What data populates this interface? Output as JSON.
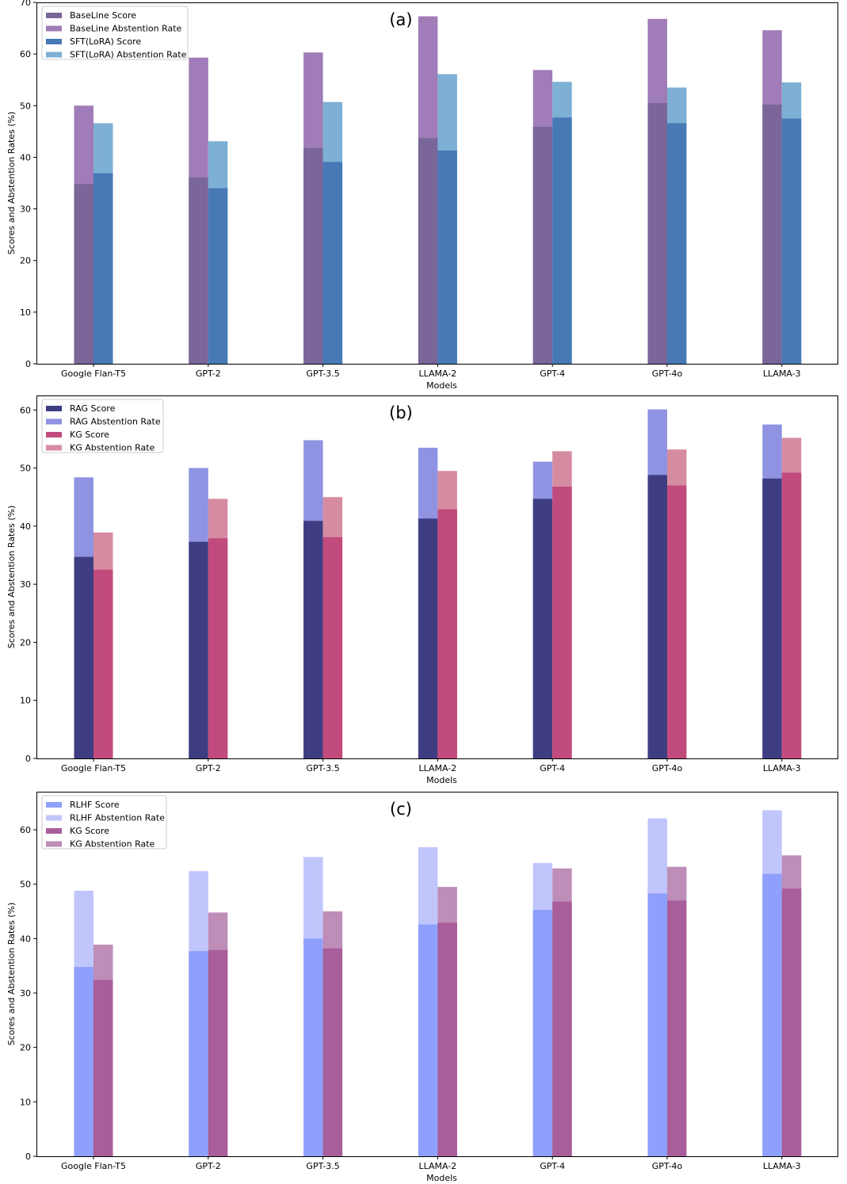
{
  "chart_data": [
    {
      "type": "bar",
      "stacked_overlay": true,
      "panel_label": "(a)",
      "xlabel": "Models",
      "ylabel": "Scores and Abstention Rates (%)",
      "ylim": [
        0,
        70
      ],
      "yticks": [
        0,
        10,
        20,
        30,
        40,
        50,
        60,
        70
      ],
      "grid": false,
      "legend_position": "top-left",
      "categories": [
        "Google Flan-T5",
        "GPT-2",
        "GPT-3.5",
        "LLAMA-2",
        "GPT-4",
        "GPT-4o",
        "LLAMA-3"
      ],
      "series": [
        {
          "name": "BaseLine Score",
          "group": 0,
          "layer": "score",
          "color": "#7a6699",
          "values": [
            34.8,
            36.1,
            41.8,
            43.7,
            45.9,
            50.5,
            50.2
          ]
        },
        {
          "name": "BaseLine Abstention Rate",
          "group": 0,
          "layer": "abstention",
          "color": "#a07cb8",
          "values": [
            50.0,
            59.3,
            60.3,
            67.3,
            56.9,
            66.8,
            64.6
          ]
        },
        {
          "name": "SFT(LoRA) Score",
          "group": 1,
          "layer": "score",
          "color": "#4779b6",
          "values": [
            36.9,
            34.0,
            39.1,
            41.3,
            47.7,
            46.6,
            47.5
          ]
        },
        {
          "name": "SFT(LoRA) Abstention Rate",
          "group": 1,
          "layer": "abstention",
          "color": "#7eafd4",
          "values": [
            46.6,
            43.1,
            50.7,
            56.1,
            54.6,
            53.5,
            54.5
          ]
        }
      ]
    },
    {
      "type": "bar",
      "stacked_overlay": true,
      "panel_label": "(b)",
      "xlabel": "Models",
      "ylabel": "Scores and Abstention Rates (%)",
      "ylim": [
        0,
        62.5
      ],
      "yticks": [
        0,
        10,
        20,
        30,
        40,
        50,
        60
      ],
      "grid": false,
      "legend_position": "top-left",
      "categories": [
        "Google Flan-T5",
        "GPT-2",
        "GPT-3.5",
        "LLAMA-2",
        "GPT-4",
        "GPT-4o",
        "LLAMA-3"
      ],
      "series": [
        {
          "name": "RAG Score",
          "group": 0,
          "layer": "score",
          "color": "#3f3d82",
          "values": [
            34.7,
            37.3,
            40.9,
            41.3,
            44.7,
            48.8,
            48.2
          ]
        },
        {
          "name": "RAG Abstention Rate",
          "group": 0,
          "layer": "abstention",
          "color": "#8f93e2",
          "values": [
            48.4,
            50.0,
            54.8,
            53.5,
            51.1,
            60.1,
            57.5
          ]
        },
        {
          "name": "KG Score",
          "group": 1,
          "layer": "score",
          "color": "#c04b7c",
          "values": [
            32.5,
            37.9,
            38.1,
            42.9,
            46.8,
            47.0,
            49.2
          ]
        },
        {
          "name": "KG Abstention Rate",
          "group": 1,
          "layer": "abstention",
          "color": "#d68ca0",
          "values": [
            38.9,
            44.7,
            45.0,
            49.5,
            52.9,
            53.2,
            55.2
          ]
        }
      ]
    },
    {
      "type": "bar",
      "stacked_overlay": true,
      "panel_label": "(c)",
      "xlabel": "Models",
      "ylabel": "Scores and Abstention Rates (%)",
      "ylim": [
        0,
        67
      ],
      "yticks": [
        0,
        10,
        20,
        30,
        40,
        50,
        60
      ],
      "grid": false,
      "legend_position": "top-left",
      "categories": [
        "Google Flan-T5",
        "GPT-2",
        "GPT-3.5",
        "LLAMA-2",
        "GPT-4",
        "GPT-4o",
        "LLAMA-3"
      ],
      "series": [
        {
          "name": "RLHF Score",
          "group": 0,
          "layer": "score",
          "color": "#8e9ffc",
          "values": [
            34.8,
            37.7,
            40.0,
            42.6,
            45.3,
            48.3,
            51.9
          ]
        },
        {
          "name": "RLHF Abstention Rate",
          "group": 0,
          "layer": "abstention",
          "color": "#c0c6fc",
          "values": [
            48.8,
            52.4,
            55.0,
            56.8,
            53.9,
            62.1,
            63.6
          ]
        },
        {
          "name": "KG Score",
          "group": 1,
          "layer": "score",
          "color": "#a75e9b",
          "values": [
            32.4,
            37.9,
            38.2,
            42.9,
            46.8,
            47.0,
            49.2
          ]
        },
        {
          "name": "KG Abstention Rate",
          "group": 1,
          "layer": "abstention",
          "color": "#be8db8",
          "values": [
            38.9,
            44.8,
            45.0,
            49.5,
            52.9,
            53.2,
            55.3
          ]
        }
      ]
    }
  ]
}
